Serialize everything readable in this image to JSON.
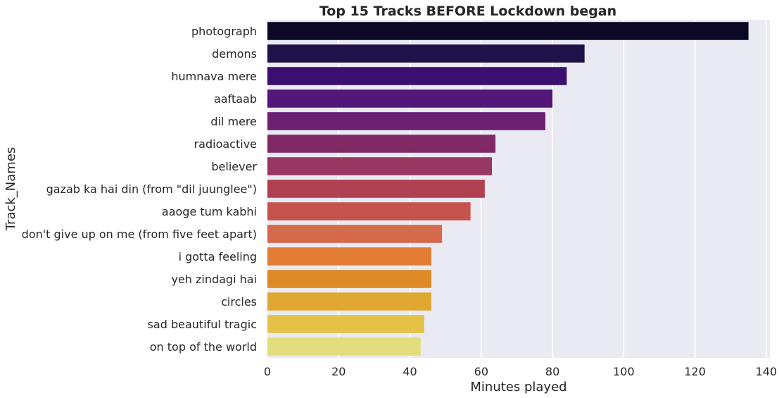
{
  "chart_data": {
    "type": "bar",
    "orientation": "horizontal",
    "title": "Top 15 Tracks BEFORE Lockdown began",
    "xlabel": "Minutes played",
    "ylabel": "Track_Names",
    "xlim": [
      0,
      141
    ],
    "x_ticks": [
      0,
      20,
      40,
      60,
      80,
      100,
      120,
      140
    ],
    "grid": true,
    "background": "#eaeaf2",
    "categories": [
      "photograph",
      "demons",
      "humnava mere",
      "aaftaab",
      "dil mere",
      "radioactive",
      "believer",
      "gazab ka hai din (from \"dil juunglee\")",
      "aaoge tum kabhi",
      "don't give up on me (from five feet apart)",
      "i gotta feeling",
      "yeh zindagi hai",
      "circles",
      "sad beautiful tragic",
      "on top of the world"
    ],
    "values": [
      135,
      89,
      84,
      80,
      78,
      64,
      63,
      61,
      57,
      49,
      46,
      46,
      46,
      44,
      43
    ],
    "colors": [
      "#0c0826",
      "#21114a",
      "#3b0f6f",
      "#531679",
      "#6b2072",
      "#7f2a64",
      "#973762",
      "#b04050",
      "#c6524e",
      "#d5694b",
      "#e27d34",
      "#de8a27",
      "#e0a830",
      "#e5c147",
      "#e2de7c"
    ]
  }
}
